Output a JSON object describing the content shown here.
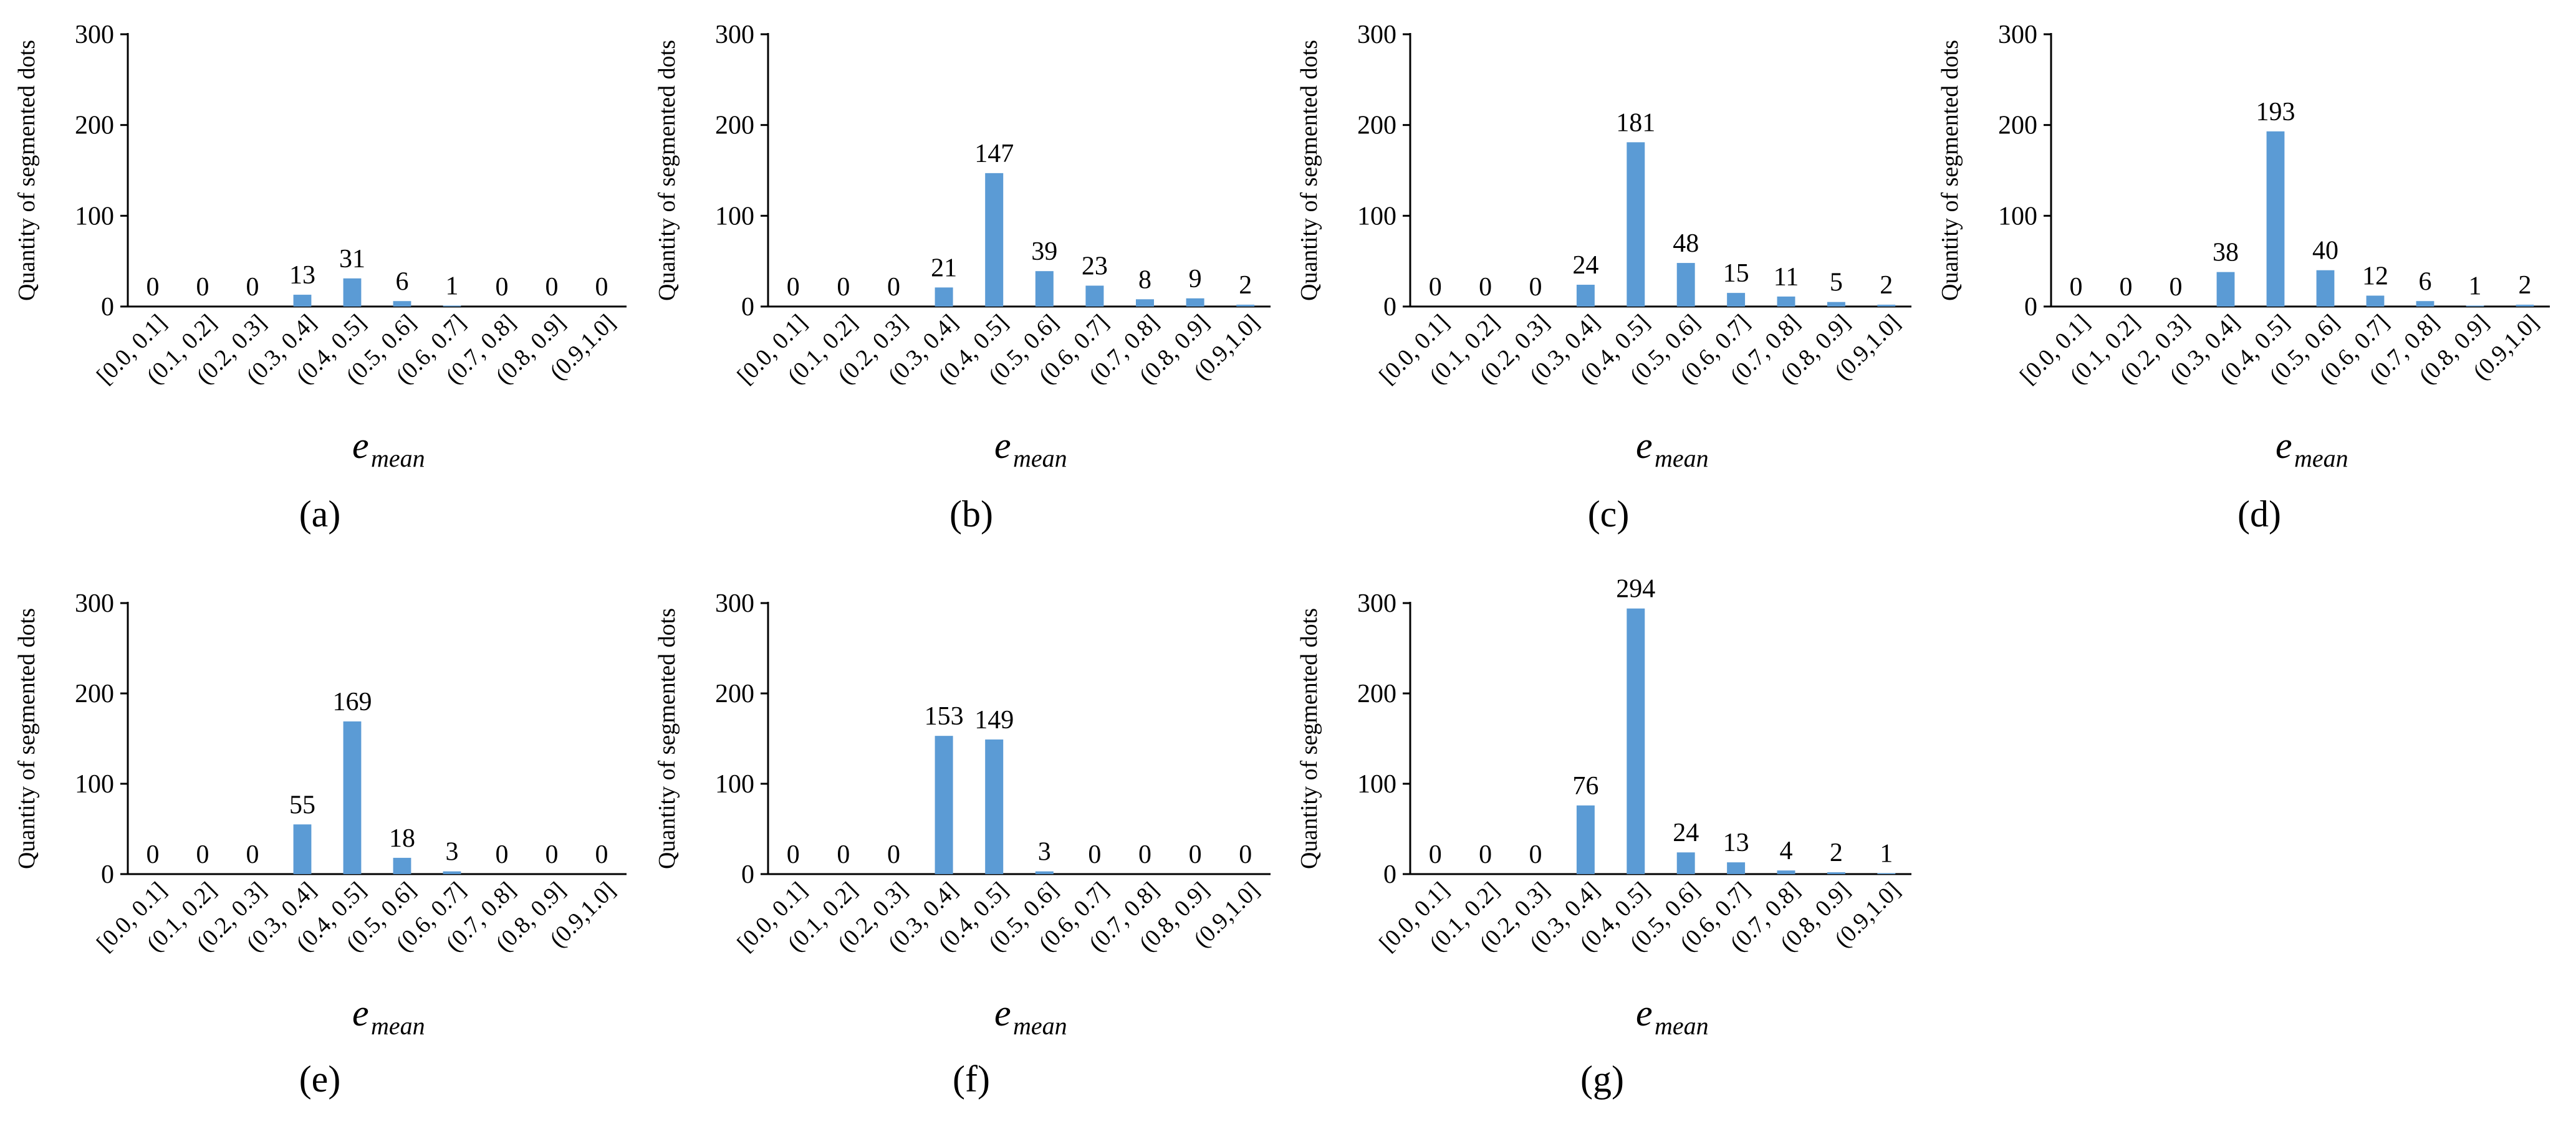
{
  "figure": {
    "bar_color": "#5B9BD5",
    "axis_color": "#000000"
  },
  "chart_data": [
    {
      "type": "bar",
      "panel_label": "(a)",
      "categories": [
        "[0.0, 0.1]",
        "(0.1, 0.2]",
        "(0.2, 0.3]",
        "(0.3, 0.4]",
        "(0.4, 0.5]",
        "(0.5, 0.6]",
        "(0.6, 0.7]",
        "(0.7, 0.8]",
        "(0.8, 0.9]",
        "(0.9,1.0]"
      ],
      "values": [
        0,
        0,
        0,
        13,
        31,
        6,
        1,
        0,
        0,
        0
      ],
      "ylabel": "Quantity of segmented dots",
      "xlabel": "e",
      "xlabel_sub": "mean",
      "ylim": [
        0,
        300
      ],
      "yticks": [
        0,
        100,
        200,
        300
      ]
    },
    {
      "type": "bar",
      "panel_label": "(b)",
      "categories": [
        "[0.0, 0.1]",
        "(0.1, 0.2]",
        "(0.2, 0.3]",
        "(0.3, 0.4]",
        "(0.4, 0.5]",
        "(0.5, 0.6]",
        "(0.6, 0.7]",
        "(0.7, 0.8]",
        "(0.8, 0.9]",
        "(0.9,1.0]"
      ],
      "values": [
        0,
        0,
        0,
        21,
        147,
        39,
        23,
        8,
        9,
        2
      ],
      "ylabel": "Quantity of segmented dots",
      "xlabel": "e",
      "xlabel_sub": "mean",
      "ylim": [
        0,
        300
      ],
      "yticks": [
        0,
        100,
        200,
        300
      ]
    },
    {
      "type": "bar",
      "panel_label": "(c)",
      "categories": [
        "[0.0, 0.1]",
        "(0.1, 0.2]",
        "(0.2, 0.3]",
        "(0.3, 0.4]",
        "(0.4, 0.5]",
        "(0.5, 0.6]",
        "(0.6, 0.7]",
        "(0.7, 0.8]",
        "(0.8, 0.9]",
        "(0.9,1.0]"
      ],
      "values": [
        0,
        0,
        0,
        24,
        181,
        48,
        15,
        11,
        5,
        2
      ],
      "ylabel": "Quantity of segmented dots",
      "xlabel": "e",
      "xlabel_sub": "mean",
      "ylim": [
        0,
        300
      ],
      "yticks": [
        0,
        100,
        200,
        300
      ]
    },
    {
      "type": "bar",
      "panel_label": "(d)",
      "categories": [
        "[0.0, 0.1]",
        "(0.1, 0.2]",
        "(0.2, 0.3]",
        "(0.3, 0.4]",
        "(0.4, 0.5]",
        "(0.5, 0.6]",
        "(0.6, 0.7]",
        "(0.7, 0.8]",
        "(0.8, 0.9]",
        "(0.9,1.0]"
      ],
      "values": [
        0,
        0,
        0,
        38,
        193,
        40,
        12,
        6,
        1,
        2
      ],
      "ylabel": "Quantity of segmented dots",
      "xlabel": "e",
      "xlabel_sub": "mean",
      "ylim": [
        0,
        300
      ],
      "yticks": [
        0,
        100,
        200,
        300
      ]
    },
    {
      "type": "bar",
      "panel_label": "(e)",
      "categories": [
        "[0.0, 0.1]",
        "(0.1, 0.2]",
        "(0.2, 0.3]",
        "(0.3, 0.4]",
        "(0.4, 0.5]",
        "(0.5, 0.6]",
        "(0.6, 0.7]",
        "(0.7, 0.8]",
        "(0.8, 0.9]",
        "(0.9,1.0]"
      ],
      "values": [
        0,
        0,
        0,
        55,
        169,
        18,
        3,
        0,
        0,
        0
      ],
      "ylabel": "Quantity of segmented dots",
      "xlabel": "e",
      "xlabel_sub": "mean",
      "ylim": [
        0,
        300
      ],
      "yticks": [
        0,
        100,
        200,
        300
      ]
    },
    {
      "type": "bar",
      "panel_label": "(f)",
      "categories": [
        "[0.0, 0.1]",
        "(0.1, 0.2]",
        "(0.2, 0.3]",
        "(0.3, 0.4]",
        "(0.4, 0.5]",
        "(0.5, 0.6]",
        "(0.6, 0.7]",
        "(0.7, 0.8]",
        "(0.8, 0.9]",
        "(0.9,1.0]"
      ],
      "values": [
        0,
        0,
        0,
        153,
        149,
        3,
        0,
        0,
        0,
        0
      ],
      "ylabel": "Quantity of segmented dots",
      "xlabel": "e",
      "xlabel_sub": "mean",
      "ylim": [
        0,
        300
      ],
      "yticks": [
        0,
        100,
        200,
        300
      ]
    },
    {
      "type": "bar",
      "panel_label": "(g)",
      "categories": [
        "[0.0, 0.1]",
        "(0.1, 0.2]",
        "(0.2, 0.3]",
        "(0.3, 0.4]",
        "(0.4, 0.5]",
        "(0.5, 0.6]",
        "(0.6, 0.7]",
        "(0.7, 0.8]",
        "(0.8, 0.9]",
        "(0.9,1.0]"
      ],
      "values": [
        0,
        0,
        0,
        76,
        294,
        24,
        13,
        4,
        2,
        1
      ],
      "ylabel": "Quantity of segmented dots",
      "xlabel": "e",
      "xlabel_sub": "mean",
      "ylim": [
        0,
        300
      ],
      "yticks": [
        0,
        100,
        200,
        300
      ]
    }
  ]
}
